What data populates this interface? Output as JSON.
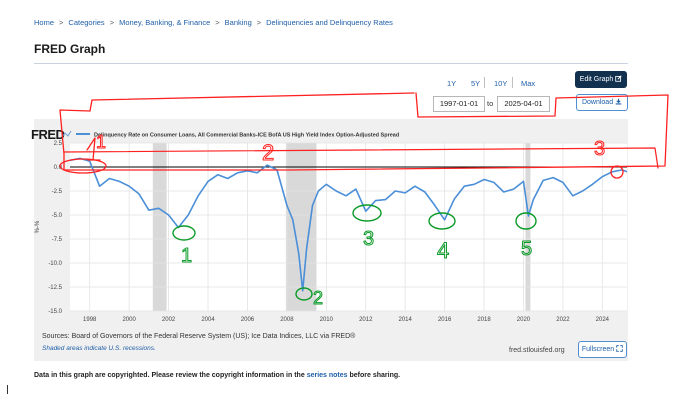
{
  "breadcrumb": {
    "items": [
      "Home",
      "Categories",
      "Money, Banking, & Finance",
      "Banking",
      "Delinquencies and Delinquency Rates"
    ],
    "separator": ">"
  },
  "page_title": "FRED Graph",
  "controls": {
    "ranges": [
      "1Y",
      "5Y",
      "10Y",
      "Max"
    ],
    "start_date": "1997-01-01",
    "to_label": "to",
    "end_date": "2025-04-01",
    "edit_graph_label": "Edit Graph",
    "download_label": "Download",
    "fullscreen_label": "Fullscreen"
  },
  "chart_data": {
    "type": "line",
    "logo": "FRED",
    "legend_text": "Delinquency Rate on Consumer Loans, All Commercial Banks-ICE BofA US High Yield Index Option-Adjusted Spread",
    "ylabel": "%-%",
    "xlim": [
      1997.0,
      2025.25
    ],
    "ylim": [
      -15.0,
      2.5
    ],
    "yticks": [
      2.5,
      0.0,
      -2.5,
      -5.0,
      -7.5,
      -10.0,
      -12.5,
      -15.0
    ],
    "ytick_labels": [
      "2.5",
      "0.0",
      "-2.5",
      "-5.0",
      "-7.5",
      "-10.0",
      "-12.5",
      "-15.0"
    ],
    "xticks": [
      1998,
      2000,
      2002,
      2004,
      2006,
      2008,
      2010,
      2012,
      2014,
      2016,
      2018,
      2020,
      2022,
      2024
    ],
    "grid": true,
    "zero_line": true,
    "recessions": [
      [
        2001.2,
        2001.9
      ],
      [
        2007.95,
        2009.5
      ],
      [
        2020.1,
        2020.35
      ]
    ],
    "series": [
      {
        "color": "#4b8fd8",
        "x": [
          1997.0,
          1997.5,
          1998.0,
          1998.5,
          1999.0,
          1999.5,
          2000.0,
          2000.5,
          2001.0,
          2001.5,
          2002.0,
          2002.5,
          2003.0,
          2003.5,
          2004.0,
          2004.5,
          2005.0,
          2005.5,
          2006.0,
          2006.5,
          2007.0,
          2007.5,
          2008.0,
          2008.3,
          2008.6,
          2008.8,
          2009.0,
          2009.3,
          2009.6,
          2010.0,
          2010.5,
          2011.0,
          2011.5,
          2012.0,
          2012.5,
          2013.0,
          2013.5,
          2014.0,
          2014.5,
          2015.0,
          2015.5,
          2016.0,
          2016.5,
          2017.0,
          2017.5,
          2018.0,
          2018.5,
          2019.0,
          2019.5,
          2020.0,
          2020.25,
          2020.5,
          2021.0,
          2021.5,
          2022.0,
          2022.5,
          2023.0,
          2023.5,
          2024.0,
          2024.5,
          2025.0,
          2025.25
        ],
        "y": [
          0.7,
          0.9,
          0.6,
          -2.0,
          -1.2,
          -1.5,
          -2.0,
          -2.8,
          -4.5,
          -4.3,
          -5.0,
          -6.3,
          -5.0,
          -3.0,
          -1.5,
          -0.8,
          -1.2,
          -0.6,
          -0.4,
          -0.6,
          0.2,
          -0.3,
          -4.0,
          -5.5,
          -9.0,
          -12.9,
          -8.5,
          -4.0,
          -2.5,
          -1.8,
          -2.5,
          -3.0,
          -2.3,
          -4.6,
          -3.5,
          -3.4,
          -2.5,
          -2.7,
          -2.0,
          -2.6,
          -4.0,
          -5.5,
          -3.3,
          -2.0,
          -1.8,
          -1.3,
          -1.6,
          -2.6,
          -2.3,
          -1.5,
          -5.1,
          -3.4,
          -1.4,
          -1.1,
          -1.6,
          -3.0,
          -2.5,
          -1.8,
          -1.0,
          -0.5,
          -0.3,
          -0.5
        ]
      }
    ],
    "annotations": [
      "1",
      "2",
      "3",
      "4",
      "5",
      "1",
      "2",
      "3"
    ]
  },
  "footer": {
    "sources": "Sources: Board of Governors of the Federal Reserve System (US); Ice Data Indices, LLC via FRED®",
    "shaded_note": "Shaded areas indicate U.S. recessions.",
    "fred_url": "fred.stlouisfed.org",
    "copyright_prefix": "Data in this graph are copyrighted. Please review the copyright information in the",
    "copyright_link": "series notes",
    "copyright_suffix": "before sharing."
  }
}
